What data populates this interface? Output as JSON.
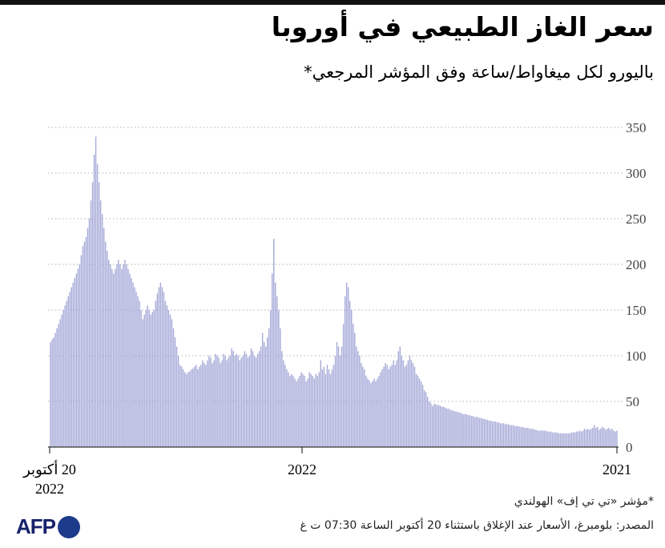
{
  "header": {
    "title": "سعر الغاز الطبيعي في أوروبا",
    "subtitle": "باليورو لكل ميغاواط/ساعة وفق المؤشر المرجعي*"
  },
  "footer": {
    "footnote": "*مؤشر «تي تي إف» الهولندي",
    "source": "المصدر: بلومبرغ، الأسعار عند الإغلاق باستثناء 20 أكتوبر الساعة 07:30 ت غ",
    "logo": "AFP"
  },
  "colors": {
    "bars": "#a8acd9",
    "grid": "#b0b0b0",
    "axis": "#333333",
    "logo": "#17216b",
    "logo_dot": "#1e3a8a"
  },
  "chart_data": {
    "type": "bar",
    "x_direction": "right-to-left",
    "ylim": [
      0,
      350
    ],
    "y_ticks": [
      "0",
      "50",
      "100",
      "150",
      "200",
      "250",
      "300",
      "350"
    ],
    "x_tick_labels": [
      "2021",
      "2022",
      "20 أكتوبر",
      "2022"
    ],
    "grid": "horizontal dotted",
    "series": [
      {
        "values": [
          18,
          17,
          18,
          20,
          19,
          21,
          20,
          19,
          21,
          22,
          20,
          19,
          22,
          21,
          24,
          21,
          20,
          19,
          20,
          19,
          20,
          18,
          17,
          18,
          17,
          17,
          16,
          16,
          16,
          15,
          15,
          15,
          15,
          15,
          15,
          15,
          15,
          16,
          16,
          16,
          16,
          17,
          17,
          17,
          18,
          18,
          18,
          18,
          18,
          18,
          19,
          19,
          20,
          20,
          20,
          21,
          21,
          21,
          22,
          22,
          22,
          23,
          23,
          23,
          24,
          24,
          24,
          25,
          25,
          25,
          26,
          26,
          26,
          27,
          27,
          28,
          28,
          28,
          29,
          29,
          30,
          30,
          31,
          31,
          32,
          32,
          33,
          33,
          33,
          34,
          34,
          35,
          35,
          36,
          36,
          36,
          37,
          38,
          38,
          39,
          39,
          40,
          40,
          41,
          42,
          42,
          43,
          44,
          44,
          45,
          46,
          46,
          47,
          47,
          45,
          48,
          50,
          55,
          60,
          62,
          68,
          72,
          75,
          78,
          80,
          88,
          92,
          95,
          100,
          95,
          90,
          88,
          95,
          100,
          110,
          105,
          95,
          90,
          95,
          90,
          88,
          85,
          90,
          92,
          88,
          85,
          82,
          78,
          75,
          72,
          75,
          72,
          70,
          73,
          75,
          78,
          85,
          88,
          92,
          100,
          105,
          110,
          125,
          135,
          150,
          160,
          175,
          180,
          165,
          135,
          110,
          100,
          110,
          115,
          100,
          90,
          85,
          80,
          85,
          90,
          80,
          88,
          85,
          95,
          82,
          78,
          80,
          75,
          78,
          80,
          82,
          75,
          72,
          78,
          80,
          82,
          78,
          75,
          72,
          75,
          78,
          80,
          78,
          82,
          85,
          90,
          95,
          105,
          130,
          150,
          165,
          180,
          228,
          190,
          150,
          130,
          120,
          110,
          115,
          125,
          110,
          105,
          102,
          98,
          100,
          105,
          108,
          100,
          98,
          102,
          105,
          100,
          98,
          95,
          100,
          102,
          100,
          105,
          108,
          100,
          98,
          95,
          100,
          102,
          95,
          92,
          98,
          100,
          102,
          95,
          92,
          98,
          100,
          95,
          90,
          92,
          95,
          90,
          88,
          85,
          90,
          88,
          86,
          85,
          83,
          82,
          80,
          82,
          85,
          88,
          90,
          100,
          110,
          120,
          130,
          140,
          145,
          150,
          155,
          160,
          170,
          175,
          180,
          175,
          168,
          160,
          150,
          148,
          145,
          150,
          155,
          150,
          145,
          140,
          150,
          160,
          165,
          170,
          175,
          180,
          185,
          190,
          195,
          200,
          205,
          200,
          195,
          200,
          205,
          200,
          195,
          190,
          195,
          200,
          205,
          215,
          225,
          240,
          255,
          270,
          290,
          310,
          340,
          320,
          290,
          270,
          250,
          240,
          230,
          225,
          220,
          210,
          200,
          195,
          190,
          185,
          180,
          175,
          170,
          165,
          160,
          155,
          150,
          145,
          140,
          135,
          130,
          125,
          120,
          118,
          115
        ]
      }
    ]
  }
}
